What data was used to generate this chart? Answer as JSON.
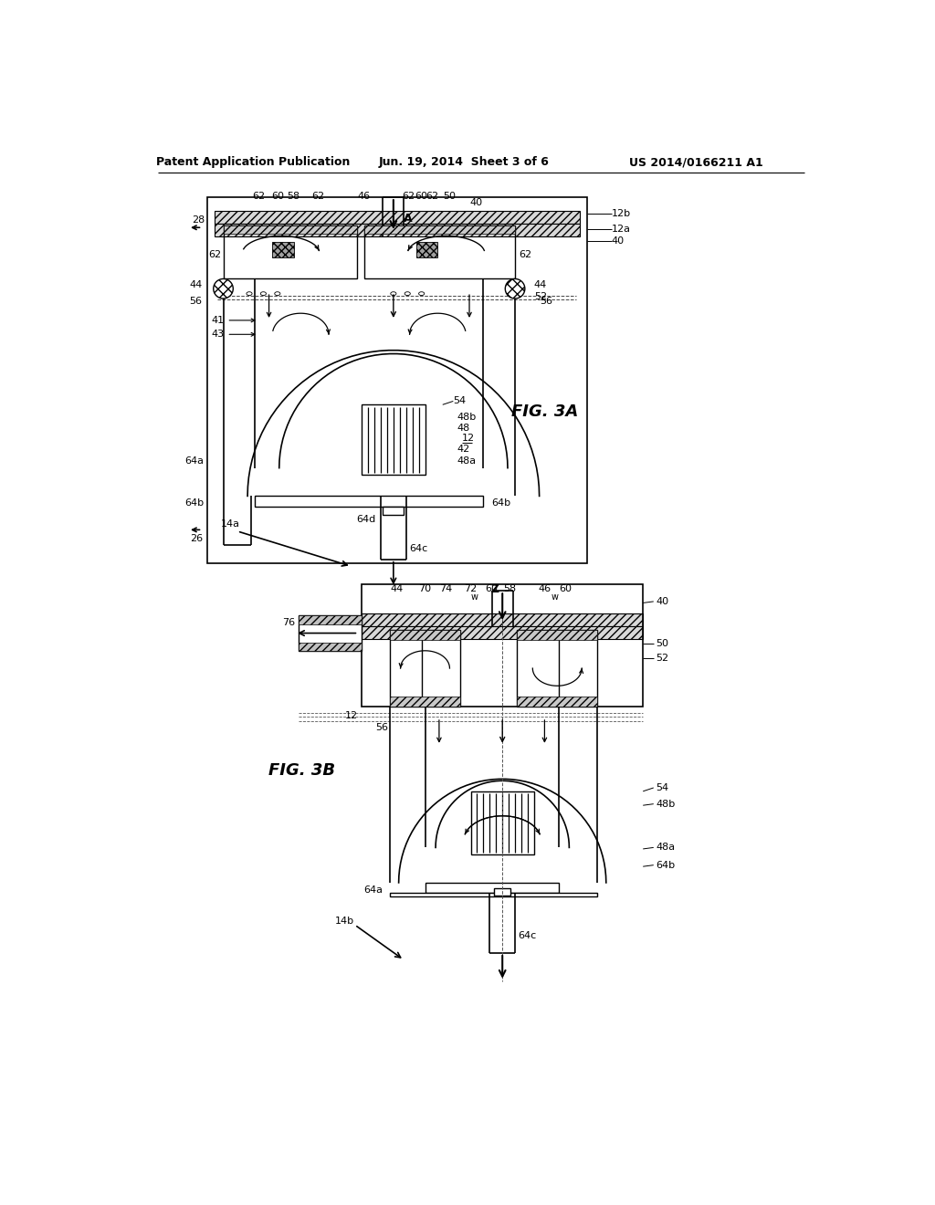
{
  "bg_color": "#ffffff",
  "header_text": "Patent Application Publication",
  "header_date": "Jun. 19, 2014  Sheet 3 of 6",
  "header_patent": "US 2014/0166211 A1",
  "fig3a_label": "FIG. 3A",
  "fig3b_label": "FIG. 3B"
}
